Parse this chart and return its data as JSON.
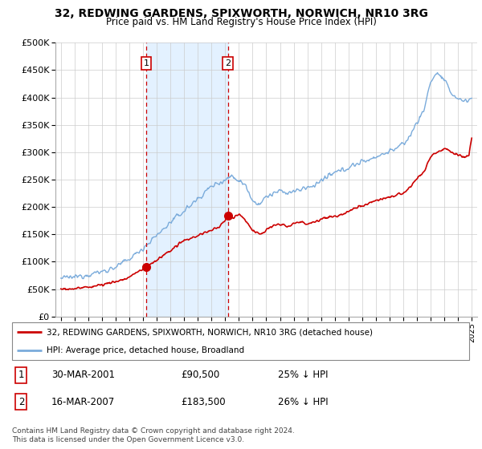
{
  "title": "32, REDWING GARDENS, SPIXWORTH, NORWICH, NR10 3RG",
  "subtitle": "Price paid vs. HM Land Registry's House Price Index (HPI)",
  "red_label": "32, REDWING GARDENS, SPIXWORTH, NORWICH, NR10 3RG (detached house)",
  "blue_label": "HPI: Average price, detached house, Broadland",
  "marker1_date": "30-MAR-2001",
  "marker1_price": 90500,
  "marker1_pct": "25% ↓ HPI",
  "marker2_date": "16-MAR-2007",
  "marker2_price": 183500,
  "marker2_pct": "26% ↓ HPI",
  "footer1": "Contains HM Land Registry data © Crown copyright and database right 2024.",
  "footer2": "This data is licensed under the Open Government Licence v3.0.",
  "red_color": "#cc0000",
  "blue_color": "#7aabdb",
  "shade_color": "#ddeeff",
  "vline_color": "#cc0000",
  "ylim": [
    0,
    500000
  ],
  "yticks": [
    0,
    50000,
    100000,
    150000,
    200000,
    250000,
    300000,
    350000,
    400000,
    450000,
    500000
  ],
  "marker1_x": 2001.23,
  "marker2_x": 2007.2
}
